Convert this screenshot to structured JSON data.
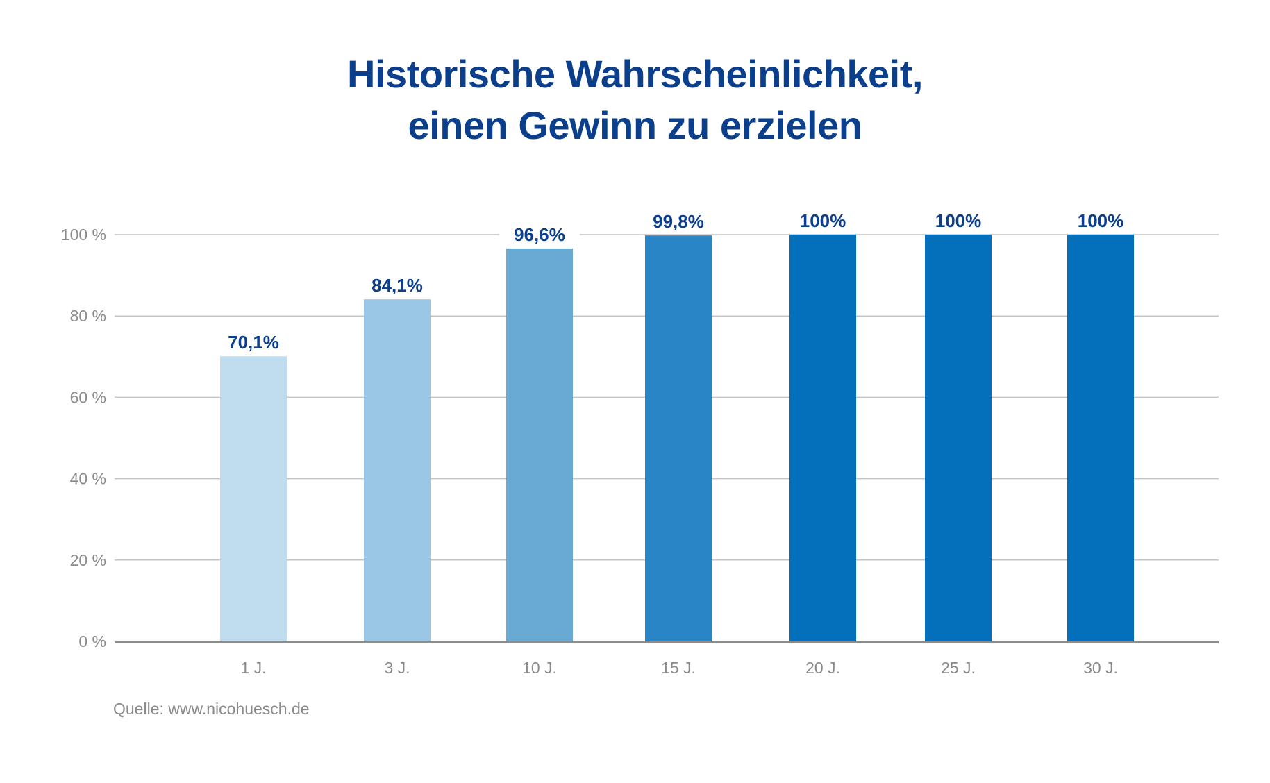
{
  "chart_data": {
    "type": "bar",
    "title_lines": [
      "Historische Wahrscheinlichkeit,",
      "einen Gewinn zu erzielen"
    ],
    "categories": [
      "1 J.",
      "3 J.",
      "10 J.",
      "15 J.",
      "20 J.",
      "25 J.",
      "30 J."
    ],
    "values": [
      70.1,
      84.1,
      96.6,
      99.8,
      100,
      100,
      100
    ],
    "value_labels": [
      "70,1%",
      "84,1%",
      "96,6%",
      "99,8%",
      "100%",
      "100%",
      "100%"
    ],
    "bar_colors": [
      "#c0dcef",
      "#9ac7e5",
      "#69aad5",
      "#2a85c6",
      "#046fba",
      "#046fba",
      "#046fba"
    ],
    "y_ticks": [
      0,
      20,
      40,
      60,
      80,
      100
    ],
    "y_tick_labels": [
      "0 %",
      "20 %",
      "40 %",
      "60 %",
      "80 %",
      "100 %"
    ],
    "ylim": [
      0,
      100
    ],
    "grid": true,
    "xlabel": "",
    "ylabel": "",
    "colors": {
      "title": "#0b3f8c",
      "value_label": "#0b3f8c",
      "tick_label": "#8a8a8a",
      "grid": "#c4c4c4",
      "axis": "#8c8c8c"
    }
  },
  "source": "Quelle: www.nicohuesch.de"
}
